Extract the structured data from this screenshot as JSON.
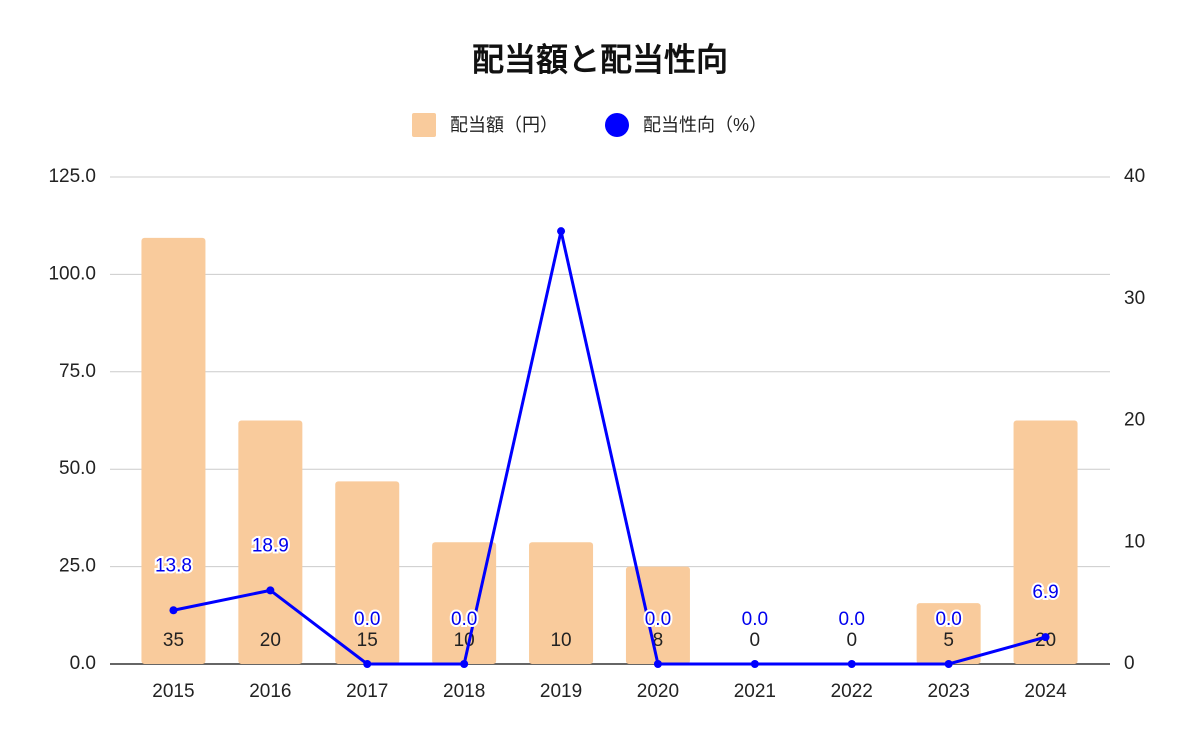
{
  "chart_data": {
    "type": "bar_line",
    "title": "配当額と配当性向",
    "categories": [
      "2015",
      "2016",
      "2017",
      "2018",
      "2019",
      "2020",
      "2021",
      "2022",
      "2023",
      "2024"
    ],
    "series": [
      {
        "name": "配当額（円）",
        "type": "bar",
        "axis": "y2",
        "color": "#f9cb9c",
        "values": [
          35,
          20,
          15,
          10,
          10,
          8,
          0,
          0,
          5,
          20
        ]
      },
      {
        "name": "配当性向（%）",
        "type": "line",
        "axis": "y",
        "color": "#0000ff",
        "values": [
          13.8,
          18.9,
          0,
          0,
          111.1,
          0,
          0,
          0,
          0,
          6.9
        ],
        "value_labels": [
          "13.8",
          "18.9",
          "0.0",
          "0.0",
          null,
          "0.0",
          "0.0",
          "0.0",
          "0.0",
          "6.9"
        ]
      }
    ],
    "ylim": [
      0,
      125
    ],
    "yticks": [
      {
        "value": 0,
        "label": "0.0"
      },
      {
        "value": 25,
        "label": "25.0"
      },
      {
        "value": 50,
        "label": "50.0"
      },
      {
        "value": 75,
        "label": "75.0"
      },
      {
        "value": 100,
        "label": "100.0"
      },
      {
        "value": 125,
        "label": "125.0"
      }
    ],
    "y2lim": [
      0,
      40
    ],
    "y2ticks": [
      0,
      10,
      20,
      30,
      40
    ],
    "grid": true,
    "legend": "top"
  }
}
